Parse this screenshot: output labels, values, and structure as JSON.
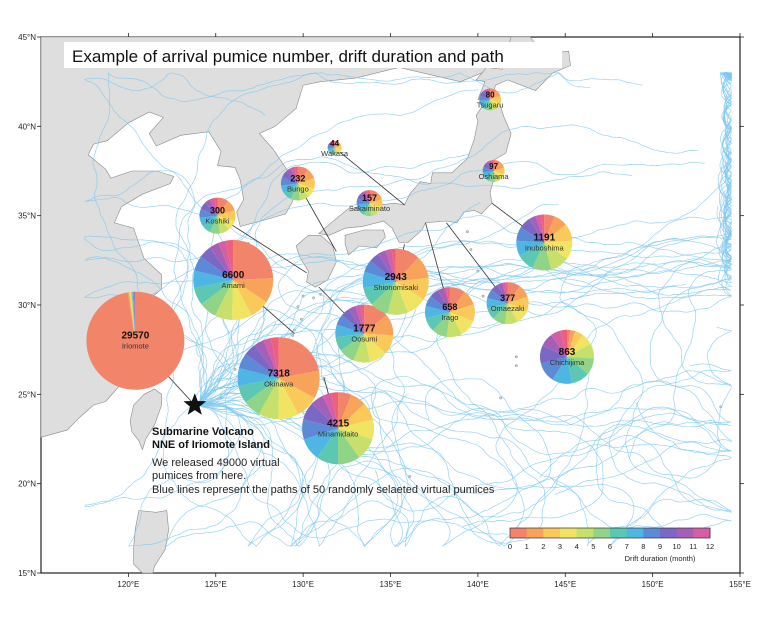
{
  "title": "Example of arrival pumice number, drift duration and path",
  "lat_labels": [
    "45°N",
    "40°N",
    "35°N",
    "30°N",
    "25°N",
    "20°N",
    "15°N"
  ],
  "lon_labels": [
    "120°E",
    "125°E",
    "130°E",
    "135°E",
    "140°E",
    "145°E",
    "150°E",
    "155°E"
  ],
  "volcano": {
    "name1": "Submarine Volcano",
    "name2": "NNE of Iriomote Island",
    "desc1": "We released 49000 virtual",
    "desc2": "pumices from here.",
    "desc3": "Blue lines represent the paths of 50 randomly selaeted virtual pumices"
  },
  "colorbar": {
    "label": "Drift duration (month)",
    "ticks": [
      "0",
      "1",
      "2",
      "3",
      "4",
      "5",
      "6",
      "7",
      "8",
      "9",
      "10",
      "11",
      "12"
    ],
    "colors": [
      "#f2846a",
      "#f7a45a",
      "#f9c95a",
      "#f1e463",
      "#c6e06b",
      "#8fd487",
      "#5cc7b3",
      "#4fb6e3",
      "#5c8ad6",
      "#7b67c4",
      "#a45fb6",
      "#d45fa5",
      "#ee5f7b"
    ]
  },
  "locations": [
    {
      "name": "Iriomote",
      "count": "29570",
      "lon": 120.4,
      "lat": 28.0,
      "r": 49,
      "slices": [
        0.975,
        0.004,
        0.003,
        0.003,
        0.002,
        0.002,
        0.002,
        0.002,
        0.002,
        0.002,
        0.001,
        0.001,
        0.001
      ]
    },
    {
      "name": "Amami",
      "count": "6600",
      "lon": 126.0,
      "lat": 31.4,
      "r": 40,
      "slices": [
        0.24,
        0.1,
        0.08,
        0.08,
        0.07,
        0.07,
        0.07,
        0.07,
        0.06,
        0.05,
        0.04,
        0.03,
        0.03
      ]
    },
    {
      "name": "Okinawa",
      "count": "7318",
      "lon": 128.6,
      "lat": 25.9,
      "r": 41,
      "slices": [
        0.22,
        0.11,
        0.09,
        0.08,
        0.08,
        0.07,
        0.07,
        0.07,
        0.06,
        0.05,
        0.04,
        0.03,
        0.03
      ]
    },
    {
      "name": "Minamidaito",
      "count": "4215",
      "lon": 132.0,
      "lat": 23.1,
      "r": 36,
      "slices": [
        0.06,
        0.07,
        0.08,
        0.09,
        0.1,
        0.1,
        0.1,
        0.1,
        0.09,
        0.08,
        0.06,
        0.04,
        0.03
      ]
    },
    {
      "name": "Oosumi",
      "count": "1777",
      "lon": 133.5,
      "lat": 28.4,
      "r": 29,
      "slices": [
        0.14,
        0.12,
        0.11,
        0.1,
        0.09,
        0.09,
        0.08,
        0.07,
        0.06,
        0.05,
        0.04,
        0.03,
        0.02
      ]
    },
    {
      "name": "Shionomisaki",
      "count": "2943",
      "lon": 135.3,
      "lat": 31.3,
      "r": 33,
      "slices": [
        0.12,
        0.11,
        0.11,
        0.1,
        0.1,
        0.09,
        0.09,
        0.08,
        0.06,
        0.05,
        0.04,
        0.03,
        0.02
      ]
    },
    {
      "name": "Koshiki",
      "count": "300",
      "lon": 125.1,
      "lat": 35.0,
      "r": 18,
      "slices": [
        0.1,
        0.1,
        0.1,
        0.09,
        0.09,
        0.09,
        0.08,
        0.08,
        0.08,
        0.07,
        0.05,
        0.04,
        0.03
      ]
    },
    {
      "name": "Bungo",
      "count": "232",
      "lon": 129.7,
      "lat": 36.8,
      "r": 17,
      "slices": [
        0.1,
        0.1,
        0.1,
        0.09,
        0.09,
        0.09,
        0.08,
        0.08,
        0.08,
        0.07,
        0.05,
        0.04,
        0.03
      ]
    },
    {
      "name": "Wakasa",
      "count": "44",
      "lon": 131.8,
      "lat": 38.8,
      "r": 7,
      "slices": [
        0.1,
        0.1,
        0.1,
        0.09,
        0.09,
        0.09,
        0.08,
        0.08,
        0.08,
        0.07,
        0.05,
        0.04,
        0.03
      ]
    },
    {
      "name": "Sakaiminato",
      "count": "157",
      "lon": 133.8,
      "lat": 35.7,
      "r": 13,
      "slices": [
        0.1,
        0.1,
        0.1,
        0.09,
        0.09,
        0.09,
        0.08,
        0.08,
        0.08,
        0.07,
        0.05,
        0.04,
        0.03
      ]
    },
    {
      "name": "Tsugaru",
      "count": "80",
      "lon": 140.7,
      "lat": 41.5,
      "r": 11,
      "slices": [
        0.1,
        0.1,
        0.1,
        0.09,
        0.09,
        0.09,
        0.08,
        0.08,
        0.08,
        0.07,
        0.05,
        0.04,
        0.03
      ]
    },
    {
      "name": "Oshiama",
      "count": "97",
      "lon": 140.9,
      "lat": 37.5,
      "r": 11,
      "slices": [
        0.1,
        0.1,
        0.1,
        0.09,
        0.09,
        0.09,
        0.08,
        0.08,
        0.08,
        0.07,
        0.05,
        0.04,
        0.03
      ]
    },
    {
      "name": "Inuboshima",
      "count": "1191",
      "lon": 143.8,
      "lat": 33.5,
      "r": 28,
      "slices": [
        0.06,
        0.08,
        0.1,
        0.11,
        0.11,
        0.11,
        0.1,
        0.09,
        0.08,
        0.07,
        0.04,
        0.03,
        0.02
      ]
    },
    {
      "name": "Irago",
      "count": "658",
      "lon": 138.4,
      "lat": 29.6,
      "r": 25,
      "slices": [
        0.1,
        0.1,
        0.11,
        0.11,
        0.1,
        0.1,
        0.09,
        0.08,
        0.07,
        0.06,
        0.04,
        0.02,
        0.02
      ]
    },
    {
      "name": "Omaezaki",
      "count": "377",
      "lon": 141.7,
      "lat": 30.1,
      "r": 21,
      "slices": [
        0.1,
        0.1,
        0.11,
        0.11,
        0.1,
        0.1,
        0.09,
        0.08,
        0.07,
        0.06,
        0.04,
        0.02,
        0.02
      ]
    },
    {
      "name": "Chichijima",
      "count": "863",
      "lon": 145.1,
      "lat": 27.1,
      "r": 27,
      "slices": [
        0.02,
        0.03,
        0.05,
        0.07,
        0.09,
        0.1,
        0.11,
        0.12,
        0.12,
        0.11,
        0.08,
        0.06,
        0.04
      ]
    }
  ]
}
